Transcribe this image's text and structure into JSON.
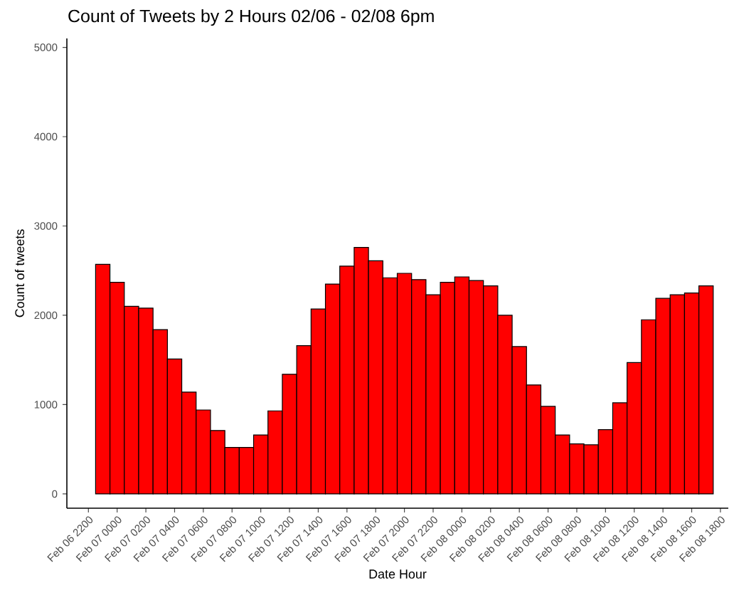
{
  "chart_data": {
    "type": "bar",
    "title": "Count of Tweets by 2 Hours 02/06 - 02/08 6pm",
    "xlabel": "Date Hour",
    "ylabel": "Count of tweets",
    "categories": [
      "Feb 06 2200",
      null,
      "Feb 07 0000",
      null,
      "Feb 07 0200",
      null,
      "Feb 07 0400",
      null,
      "Feb 07 0600",
      null,
      "Feb 07 0800",
      null,
      "Feb 07 1000",
      null,
      "Feb 07 1200",
      null,
      "Feb 07 1400",
      null,
      "Feb 07 1600",
      null,
      "Feb 07 1800",
      null,
      "Feb 07 2000",
      null,
      "Feb 07 2200",
      null,
      "Feb 08 0000",
      null,
      "Feb 08 0200",
      null,
      "Feb 08 0400",
      null,
      "Feb 08 0600",
      null,
      "Feb 08 0800",
      null,
      "Feb 08 1000",
      null,
      "Feb 08 1200",
      null,
      "Feb 08 1400",
      null,
      "Feb 08 1600",
      null,
      "Feb 08 1800"
    ],
    "values": [
      null,
      2570,
      2370,
      2100,
      2080,
      1840,
      1510,
      1140,
      940,
      710,
      520,
      520,
      660,
      930,
      1340,
      1660,
      2070,
      2350,
      2550,
      2760,
      2610,
      2420,
      2470,
      2400,
      2230,
      2370,
      2430,
      2390,
      2330,
      2000,
      1650,
      1220,
      980,
      660,
      560,
      550,
      720,
      1020,
      1470,
      1950,
      2190,
      2230,
      2250,
      2330,
      null
    ],
    "color": "#ff0000",
    "ylim": [
      -160,
      5100
    ],
    "yticks": [
      0,
      1000,
      2000,
      3000,
      4000,
      5000
    ],
    "grid": false
  }
}
